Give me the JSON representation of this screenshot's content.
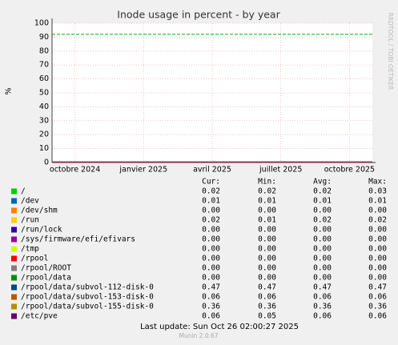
{
  "chart_data": {
    "type": "line",
    "title": "Inode usage in percent - by year",
    "y_label": "%",
    "watermark": "RRDTOOL / TOBI OETIKER",
    "xlim": [
      "2024-09",
      "2025-11"
    ],
    "xticks": [
      {
        "value": "2024-10",
        "label": "octobre 2024"
      },
      {
        "value": "2025-01",
        "label": "janvier 2025"
      },
      {
        "value": "2025-04",
        "label": "avril 2025"
      },
      {
        "value": "2025-07",
        "label": "juillet 2025"
      },
      {
        "value": "2025-10",
        "label": "octobre 2025"
      }
    ],
    "ylim": [
      0,
      100
    ],
    "yticks": [
      0,
      10,
      20,
      30,
      40,
      50,
      60,
      70,
      80,
      90,
      100
    ],
    "grid": true,
    "warning_line": {
      "value": 92,
      "color": "#00aa00"
    },
    "stat_headers": [
      "Cur:",
      "Min:",
      "Avg:",
      "Max:"
    ],
    "series": [
      {
        "name": "/",
        "color": "#00cc00",
        "stats": [
          0.02,
          0.02,
          0.02,
          0.03
        ],
        "stat_labels": [
          "0.02",
          "0.02",
          "0.02",
          "0.03"
        ]
      },
      {
        "name": "/dev",
        "color": "#0066b3",
        "stats": [
          0.01,
          0.01,
          0.01,
          0.01
        ],
        "stat_labels": [
          "0.01",
          "0.01",
          "0.01",
          "0.01"
        ]
      },
      {
        "name": "/dev/shm",
        "color": "#ff8000",
        "stats": [
          0,
          0,
          0,
          0
        ],
        "stat_labels": [
          "0.00",
          "0.00",
          "0.00",
          "0.00"
        ]
      },
      {
        "name": "/run",
        "color": "#ffcc00",
        "stats": [
          0.02,
          0.01,
          0.02,
          0.02
        ],
        "stat_labels": [
          "0.02",
          "0.01",
          "0.02",
          "0.02"
        ]
      },
      {
        "name": "/run/lock",
        "color": "#330099",
        "stats": [
          0,
          0,
          0,
          0
        ],
        "stat_labels": [
          "0.00",
          "0.00",
          "0.00",
          "0.00"
        ]
      },
      {
        "name": "/sys/firmware/efi/efivars",
        "color": "#990099",
        "stats": [
          0,
          0,
          0,
          0
        ],
        "stat_labels": [
          "0.00",
          "0.00",
          "0.00",
          "0.00"
        ]
      },
      {
        "name": "/tmp",
        "color": "#ccff00",
        "stats": [
          0,
          0,
          0,
          0
        ],
        "stat_labels": [
          "0.00",
          "0.00",
          "0.00",
          "0.00"
        ]
      },
      {
        "name": "/rpool",
        "color": "#ff0000",
        "stats": [
          0,
          0,
          0,
          0
        ],
        "stat_labels": [
          "0.00",
          "0.00",
          "0.00",
          "0.00"
        ]
      },
      {
        "name": "/rpool/ROOT",
        "color": "#808080",
        "stats": [
          0,
          0,
          0,
          0
        ],
        "stat_labels": [
          "0.00",
          "0.00",
          "0.00",
          "0.00"
        ]
      },
      {
        "name": "/rpool/data",
        "color": "#008f00",
        "stats": [
          0,
          0,
          0,
          0
        ],
        "stat_labels": [
          "0.00",
          "0.00",
          "0.00",
          "0.00"
        ]
      },
      {
        "name": "/rpool/data/subvol-112-disk-0",
        "color": "#00487d",
        "stats": [
          0.47,
          0.47,
          0.47,
          0.47
        ],
        "stat_labels": [
          "0.47",
          "0.47",
          "0.47",
          "0.47"
        ]
      },
      {
        "name": "/rpool/data/subvol-153-disk-0",
        "color": "#b35a00",
        "stats": [
          0.06,
          0.06,
          0.06,
          0.06
        ],
        "stat_labels": [
          "0.06",
          "0.06",
          "0.06",
          "0.06"
        ]
      },
      {
        "name": "/rpool/data/subvol-155-disk-0",
        "color": "#b38f00",
        "stats": [
          0.36,
          0.36,
          0.36,
          0.36
        ],
        "stat_labels": [
          "0.36",
          "0.36",
          "0.36",
          "0.36"
        ]
      },
      {
        "name": "/etc/pve",
        "color": "#6b006b",
        "stats": [
          0.06,
          0.05,
          0.06,
          0.06
        ],
        "stat_labels": [
          "0.06",
          "0.05",
          "0.06",
          "0.06"
        ]
      }
    ],
    "last_update": "Last update: Sun Oct 26 02:00:27 2025",
    "footer": "Munin 2.0.67"
  }
}
